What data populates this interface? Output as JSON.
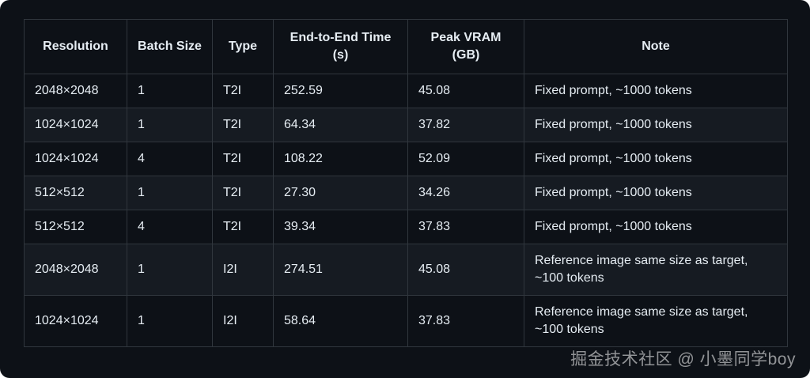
{
  "page": {
    "watermark": "掘金技术社区 @ 小墨同学boy"
  },
  "colors": {
    "page_background": "#ffffff",
    "card_background": "#0d1117",
    "row_alt": "#161b22",
    "border": "#30363d",
    "text": "#e6edf3",
    "watermark_color": "rgba(255,255,255,0.55)"
  },
  "table": {
    "columns": [
      "Resolution",
      "Batch Size",
      "Type",
      "End-to-End Time (s)",
      "Peak VRAM (GB)",
      "Note"
    ],
    "rows": [
      [
        "2048×2048",
        "1",
        "T2I",
        "252.59",
        "45.08",
        "Fixed prompt, ~1000 tokens"
      ],
      [
        "1024×1024",
        "1",
        "T2I",
        "64.34",
        "37.82",
        "Fixed prompt, ~1000 tokens"
      ],
      [
        "1024×1024",
        "4",
        "T2I",
        "108.22",
        "52.09",
        "Fixed prompt, ~1000 tokens"
      ],
      [
        "512×512",
        "1",
        "T2I",
        "27.30",
        "34.26",
        "Fixed prompt, ~1000 tokens"
      ],
      [
        "512×512",
        "4",
        "T2I",
        "39.34",
        "37.83",
        "Fixed prompt, ~1000 tokens"
      ],
      [
        "2048×2048",
        "1",
        "I2I",
        "274.51",
        "45.08",
        "Reference image same size as target, ~100 tokens"
      ],
      [
        "1024×1024",
        "1",
        "I2I",
        "58.64",
        "37.83",
        "Reference image same size as target, ~100 tokens"
      ]
    ]
  }
}
